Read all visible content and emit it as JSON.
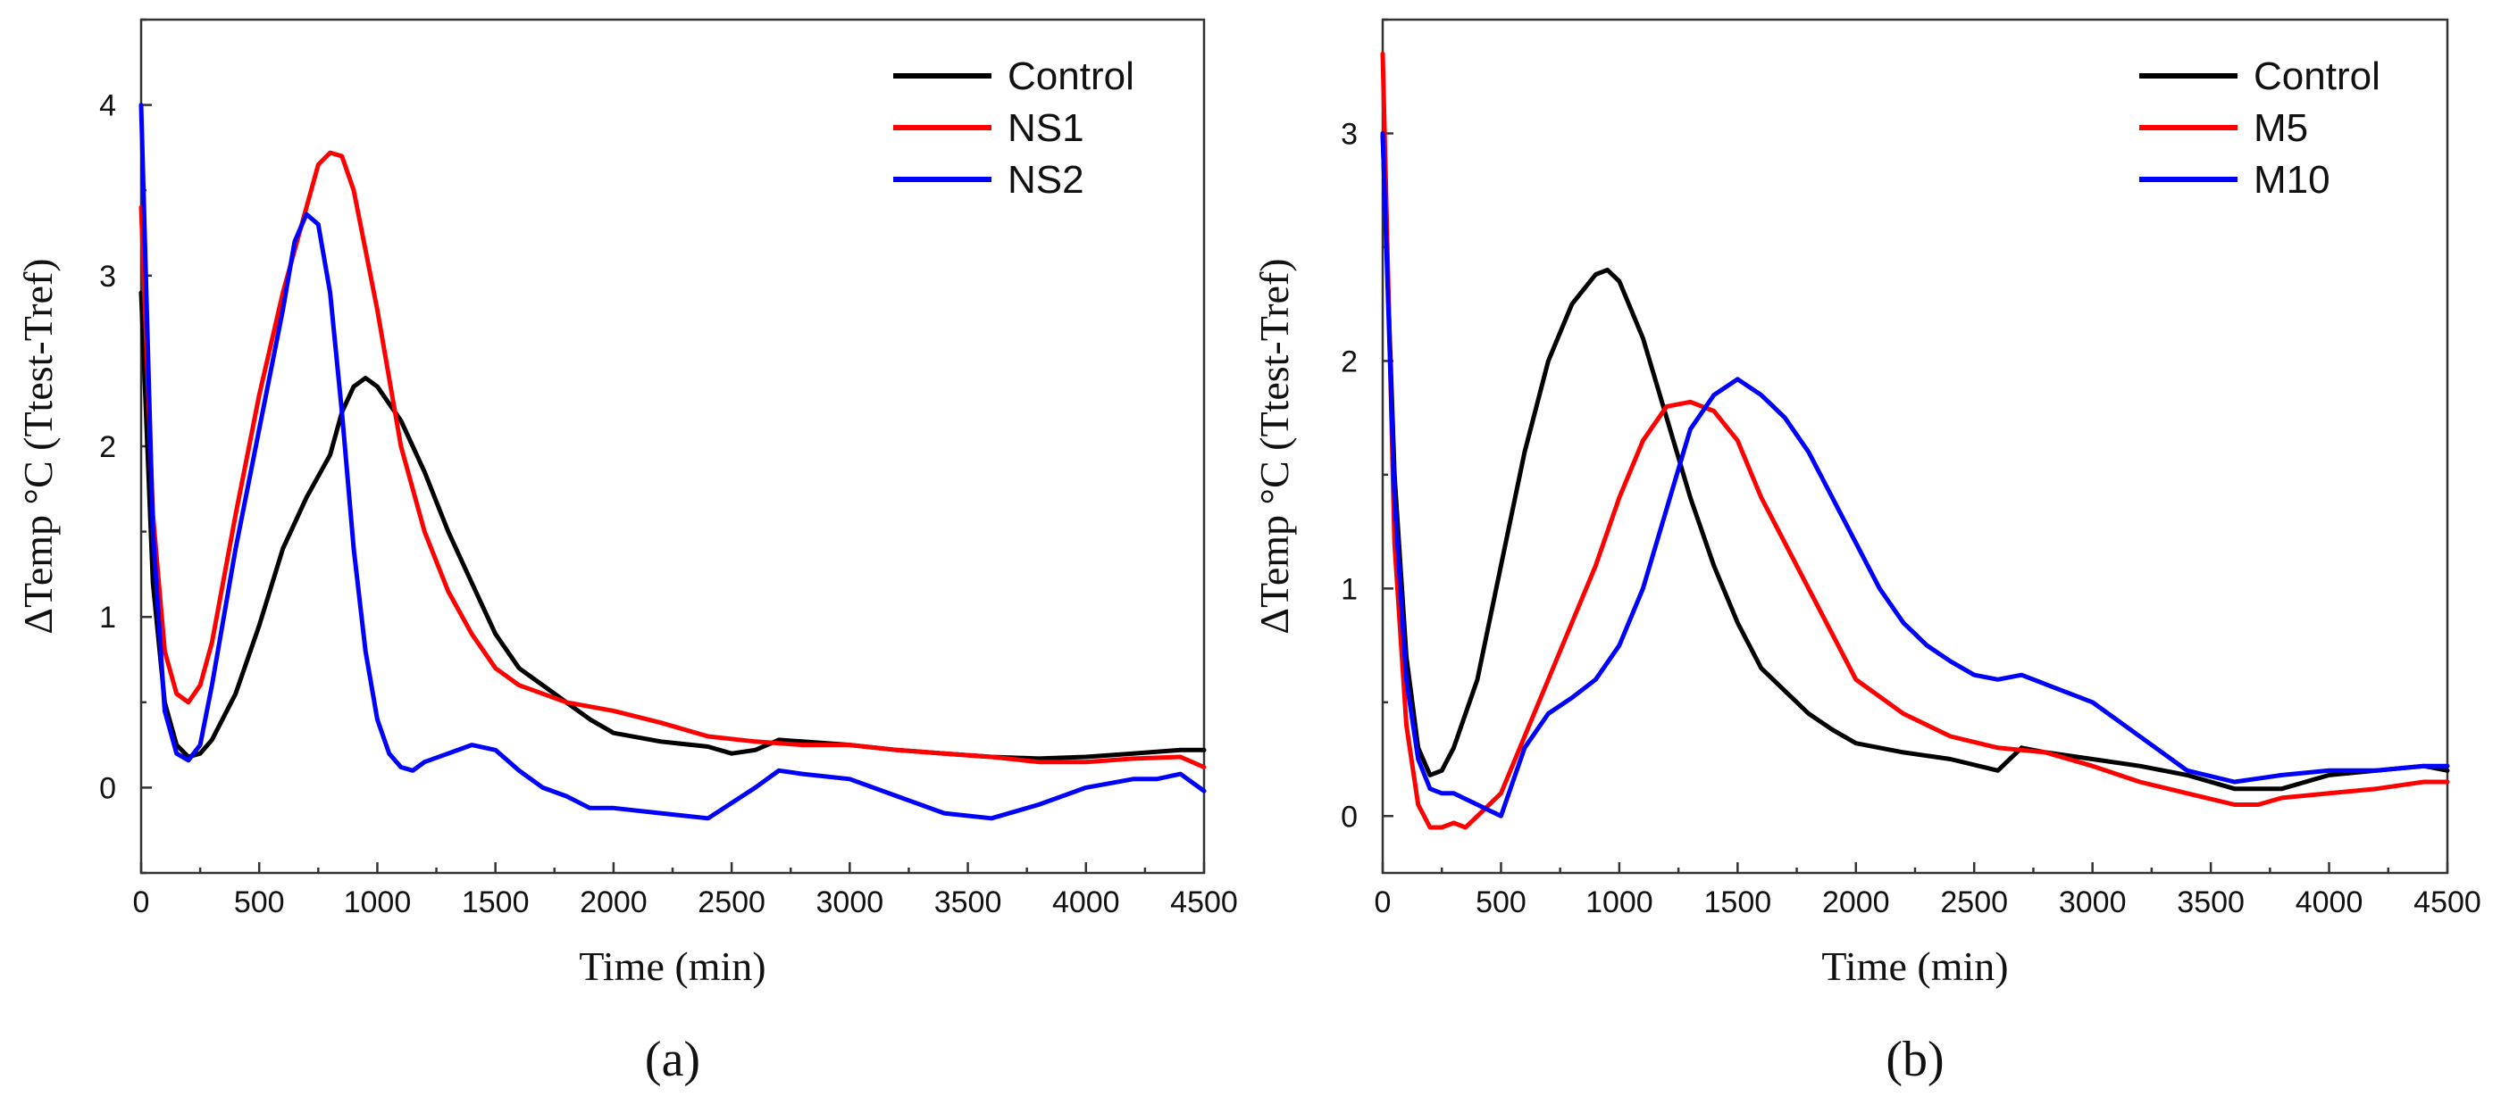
{
  "colors": {
    "Control": "#000000",
    "NS1": "#ff0000",
    "NS2": "#0000ff",
    "M5": "#ff0000",
    "M10": "#0000ff"
  },
  "chart_data": [
    {
      "type": "line",
      "panel_label": "(a)",
      "title": "",
      "xlabel": "Time (min)",
      "ylabel": "ΔTemp °C (Ttest-Tref)",
      "xlim": [
        0,
        4500
      ],
      "ylim": [
        -0.5,
        4.5
      ],
      "xticks": [
        0,
        500,
        1000,
        1500,
        2000,
        2500,
        3000,
        3500,
        4000,
        4500
      ],
      "yticks": [
        0,
        1,
        2,
        3,
        4
      ],
      "legend_position": "top-right",
      "grid": false,
      "series": [
        {
          "name": "Control",
          "color": "#000000",
          "x": [
            0,
            50,
            100,
            150,
            200,
            250,
            300,
            400,
            500,
            600,
            700,
            800,
            850,
            900,
            950,
            1000,
            1100,
            1200,
            1300,
            1400,
            1500,
            1600,
            1700,
            1800,
            1900,
            2000,
            2200,
            2400,
            2500,
            2600,
            2700,
            2800,
            3000,
            3200,
            3400,
            3600,
            3800,
            4000,
            4200,
            4400,
            4500
          ],
          "y": [
            2.9,
            1.2,
            0.5,
            0.25,
            0.18,
            0.2,
            0.28,
            0.55,
            0.95,
            1.4,
            1.7,
            1.95,
            2.2,
            2.35,
            2.4,
            2.35,
            2.15,
            1.85,
            1.5,
            1.2,
            0.9,
            0.7,
            0.6,
            0.5,
            0.4,
            0.32,
            0.27,
            0.24,
            0.2,
            0.22,
            0.28,
            0.27,
            0.25,
            0.22,
            0.2,
            0.18,
            0.17,
            0.18,
            0.2,
            0.22,
            0.22
          ]
        },
        {
          "name": "NS1",
          "color": "#ff0000",
          "x": [
            0,
            50,
            100,
            150,
            200,
            250,
            300,
            400,
            500,
            600,
            700,
            750,
            800,
            850,
            900,
            1000,
            1100,
            1200,
            1300,
            1400,
            1500,
            1600,
            1700,
            1800,
            2000,
            2200,
            2400,
            2600,
            2800,
            3000,
            3200,
            3400,
            3600,
            3800,
            4000,
            4200,
            4400,
            4500
          ],
          "y": [
            3.4,
            1.6,
            0.8,
            0.55,
            0.5,
            0.6,
            0.85,
            1.6,
            2.3,
            2.9,
            3.4,
            3.65,
            3.72,
            3.7,
            3.5,
            2.8,
            2.0,
            1.5,
            1.15,
            0.9,
            0.7,
            0.6,
            0.55,
            0.5,
            0.45,
            0.38,
            0.3,
            0.27,
            0.25,
            0.25,
            0.22,
            0.2,
            0.18,
            0.15,
            0.15,
            0.17,
            0.18,
            0.12
          ]
        },
        {
          "name": "NS2",
          "color": "#0000ff",
          "x": [
            0,
            50,
            100,
            150,
            200,
            250,
            300,
            400,
            500,
            600,
            650,
            700,
            750,
            800,
            850,
            900,
            950,
            1000,
            1050,
            1100,
            1150,
            1200,
            1300,
            1400,
            1500,
            1600,
            1700,
            1800,
            1900,
            2000,
            2200,
            2400,
            2600,
            2700,
            2800,
            3000,
            3200,
            3400,
            3600,
            3800,
            4000,
            4200,
            4300,
            4400,
            4500
          ],
          "y": [
            4.0,
            1.5,
            0.45,
            0.2,
            0.16,
            0.25,
            0.6,
            1.4,
            2.1,
            2.8,
            3.2,
            3.36,
            3.3,
            2.9,
            2.2,
            1.4,
            0.8,
            0.4,
            0.2,
            0.12,
            0.1,
            0.15,
            0.2,
            0.25,
            0.22,
            0.1,
            0.0,
            -0.05,
            -0.12,
            -0.12,
            -0.15,
            -0.18,
            0.0,
            0.1,
            0.08,
            0.05,
            -0.05,
            -0.15,
            -0.18,
            -0.1,
            0.0,
            0.05,
            0.05,
            0.08,
            -0.02
          ]
        }
      ]
    },
    {
      "type": "line",
      "panel_label": "(b)",
      "title": "",
      "xlabel": "Time (min)",
      "ylabel": "ΔTemp °C (Ttest-Tref)",
      "xlim": [
        0,
        4500
      ],
      "ylim": [
        -0.25,
        3.5
      ],
      "xticks": [
        0,
        500,
        1000,
        1500,
        2000,
        2500,
        3000,
        3500,
        4000,
        4500
      ],
      "yticks": [
        0,
        1,
        2,
        3
      ],
      "legend_position": "top-right",
      "grid": false,
      "series": [
        {
          "name": "Control",
          "color": "#000000",
          "x": [
            0,
            50,
            100,
            150,
            200,
            250,
            300,
            400,
            500,
            600,
            700,
            800,
            900,
            950,
            1000,
            1100,
            1200,
            1300,
            1400,
            1500,
            1600,
            1700,
            1800,
            1900,
            2000,
            2200,
            2400,
            2600,
            2700,
            2800,
            3000,
            3200,
            3400,
            3600,
            3800,
            4000,
            4200,
            4400,
            4500
          ],
          "y": [
            3.0,
            1.5,
            0.7,
            0.3,
            0.18,
            0.2,
            0.3,
            0.6,
            1.1,
            1.6,
            2.0,
            2.25,
            2.38,
            2.4,
            2.35,
            2.1,
            1.75,
            1.4,
            1.1,
            0.85,
            0.65,
            0.55,
            0.45,
            0.38,
            0.32,
            0.28,
            0.25,
            0.2,
            0.3,
            0.28,
            0.25,
            0.22,
            0.18,
            0.12,
            0.12,
            0.18,
            0.2,
            0.22,
            0.2
          ]
        },
        {
          "name": "M5",
          "color": "#ff0000",
          "x": [
            0,
            50,
            100,
            150,
            200,
            250,
            300,
            350,
            400,
            500,
            600,
            700,
            800,
            900,
            1000,
            1100,
            1200,
            1300,
            1400,
            1500,
            1600,
            1700,
            1800,
            1900,
            2000,
            2200,
            2400,
            2600,
            2800,
            3000,
            3200,
            3400,
            3600,
            3700,
            3800,
            4000,
            4200,
            4400,
            4500
          ],
          "y": [
            3.35,
            1.2,
            0.4,
            0.05,
            -0.05,
            -0.05,
            -0.03,
            -0.05,
            0.0,
            0.1,
            0.35,
            0.6,
            0.85,
            1.1,
            1.4,
            1.65,
            1.8,
            1.82,
            1.78,
            1.65,
            1.4,
            1.2,
            1.0,
            0.8,
            0.6,
            0.45,
            0.35,
            0.3,
            0.28,
            0.22,
            0.15,
            0.1,
            0.05,
            0.05,
            0.08,
            0.1,
            0.12,
            0.15,
            0.15
          ]
        },
        {
          "name": "M10",
          "color": "#0000ff",
          "x": [
            0,
            50,
            100,
            150,
            200,
            250,
            300,
            400,
            500,
            600,
            700,
            800,
            900,
            1000,
            1100,
            1200,
            1300,
            1400,
            1500,
            1600,
            1700,
            1800,
            1900,
            2000,
            2100,
            2200,
            2300,
            2400,
            2500,
            2600,
            2700,
            2800,
            3000,
            3200,
            3400,
            3600,
            3800,
            4000,
            4200,
            4400,
            4500
          ],
          "y": [
            3.0,
            1.4,
            0.6,
            0.25,
            0.12,
            0.1,
            0.1,
            0.05,
            0.0,
            0.3,
            0.45,
            0.52,
            0.6,
            0.75,
            1.0,
            1.35,
            1.7,
            1.85,
            1.92,
            1.85,
            1.75,
            1.6,
            1.4,
            1.2,
            1.0,
            0.85,
            0.75,
            0.68,
            0.62,
            0.6,
            0.62,
            0.58,
            0.5,
            0.35,
            0.2,
            0.15,
            0.18,
            0.2,
            0.2,
            0.22,
            0.22
          ]
        }
      ]
    }
  ]
}
